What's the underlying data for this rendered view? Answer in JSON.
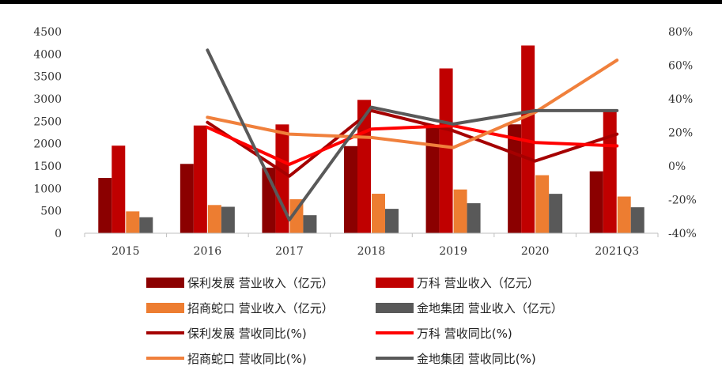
{
  "chart_data": {
    "type": "bar",
    "categories": [
      "2015",
      "2016",
      "2017",
      "2018",
      "2019",
      "2020",
      "2021Q3"
    ],
    "left_axis": {
      "ylim": [
        0,
        4500
      ],
      "ticks": [
        "0",
        "500",
        "1000",
        "1500",
        "2000",
        "2500",
        "3000",
        "3500",
        "4000",
        "4500"
      ]
    },
    "right_axis": {
      "ylim": [
        -40,
        80
      ],
      "ticks": [
        "-40%",
        "-20%",
        "0%",
        "20%",
        "40%",
        "60%",
        "80%"
      ]
    },
    "bar_series": [
      {
        "name": "保利发展  营业收入（亿元）",
        "color": "#8B0000",
        "values": [
          1235,
          1548,
          1463,
          1945,
          2359,
          2431,
          1383
        ]
      },
      {
        "name": "万科  营业收入（亿元）",
        "color": "#C00000",
        "values": [
          1955,
          2405,
          2429,
          2977,
          3679,
          4191,
          2744
        ]
      },
      {
        "name": "招商蛇口  营业收入（亿元）",
        "color": "#ED7D31",
        "values": [
          488,
          630,
          759,
          882,
          977,
          1296,
          820
        ]
      },
      {
        "name": "金地集团  营业收入（亿元）",
        "color": "#595959",
        "values": [
          357,
          591,
          403,
          545,
          670,
          880,
          580
        ]
      }
    ],
    "line_series": [
      {
        "name": "保利发展  营收同比(%)",
        "color": "#A50000",
        "values": [
          null,
          26,
          -6,
          33,
          21,
          3,
          19
        ]
      },
      {
        "name": "万科  营收同比(%)",
        "color": "#FF0000",
        "values": [
          null,
          23,
          1,
          22,
          24,
          14,
          12
        ]
      },
      {
        "name": "招商蛇口  营收同比(%)",
        "color": "#F0803C",
        "values": [
          null,
          29,
          19,
          17,
          11,
          32,
          63
        ]
      },
      {
        "name": "金地集团  营收同比(%)",
        "color": "#595959",
        "values": [
          null,
          69,
          -32,
          35,
          25,
          33,
          33
        ]
      }
    ]
  }
}
